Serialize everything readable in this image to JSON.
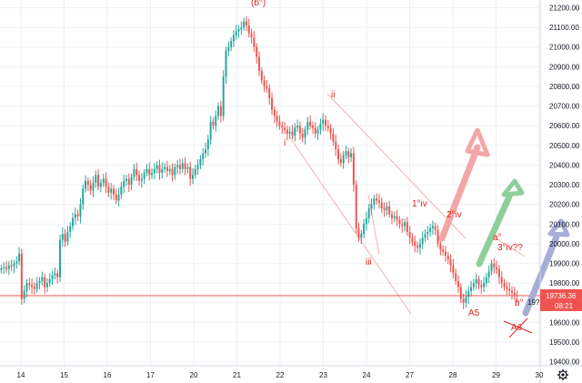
{
  "chart_data": {
    "type": "candlestick",
    "y_axis": {
      "position": "right",
      "ticks": [
        21200,
        21100,
        21000,
        20900,
        20800,
        20700,
        20600,
        20500,
        20400,
        20300,
        20200,
        20100,
        20000,
        19900,
        19800,
        19700,
        19600,
        19500,
        19400
      ],
      "tick_labels": [
        "21200.00",
        "21100.00",
        "21000.00",
        "20900.00",
        "20800.00",
        "20700.00",
        "20600.00",
        "20500.00",
        "20400.00",
        "20300.00",
        "20200.00",
        "20100.00",
        "20000.00",
        "19900.00",
        "19800.00",
        "19700.00",
        "19600.00",
        "19500.00",
        "19400.00"
      ],
      "range": [
        19380,
        21230
      ]
    },
    "x_axis": {
      "labels": [
        "14",
        "15",
        "16",
        "17",
        "20",
        "21",
        "22",
        "23",
        "24",
        "27",
        "28",
        "29",
        "30"
      ]
    },
    "last_price": 19736.36,
    "last_price_label": "19736.36",
    "countdown_label": "08:21",
    "price_line_label": "19?",
    "wave_labels": [
      "(b°)",
      "i",
      "ii",
      "iii",
      "1°iv",
      "2°iv",
      "a°",
      "3°iv??",
      "A5",
      "b°",
      "A6"
    ],
    "prices": [
      19875,
      19880,
      19872,
      19890,
      19885,
      19900,
      19910,
      19950,
      19720,
      19760,
      19800,
      19790,
      19780,
      19770,
      19800,
      19810,
      19830,
      19780,
      19800,
      19820,
      19840,
      19850,
      19830,
      20020,
      20050,
      20010,
      20060,
      20090,
      20130,
      20150,
      20140,
      20200,
      20280,
      20320,
      20300,
      20270,
      20310,
      20350,
      20290,
      20310,
      20330,
      20290,
      20260,
      20280,
      20250,
      20220,
      20250,
      20290,
      20320,
      20330,
      20300,
      20340,
      20380,
      20350,
      20320,
      20330,
      20360,
      20380,
      20350,
      20360,
      20380,
      20400,
      20360,
      20380,
      20390,
      20370,
      20380,
      20350,
      20390,
      20400,
      20380,
      20410,
      20380,
      20390,
      20330,
      20350,
      20380,
      20400,
      20430,
      20460,
      20480,
      20530,
      20620,
      20600,
      20650,
      20700,
      20650,
      20850,
      20980,
      21000,
      21030,
      21060,
      21080,
      21090,
      21100,
      21130,
      21110,
      21070,
      21050,
      21000,
      20950,
      20880,
      20830,
      20800,
      20790,
      20740,
      20680,
      20650,
      20620,
      20600,
      20590,
      20580,
      20560,
      20570,
      20550,
      20590,
      20600,
      20560,
      20540,
      20580,
      20620,
      20600,
      20590,
      20560,
      20580,
      20610,
      20630,
      20600,
      20590,
      20560,
      20520,
      20480,
      20430,
      20410,
      20450,
      20470,
      20440,
      20460,
      20300,
      20080,
      20030,
      20050,
      20100,
      20130,
      20180,
      20200,
      20230,
      20220,
      20210,
      20180,
      20170,
      20190,
      20150,
      20130,
      20140,
      20120,
      20100,
      20090,
      20110,
      20060,
      20030,
      20010,
      19990,
      19980,
      20000,
      20030,
      20050,
      20060,
      20080,
      20090,
      20070,
      20000,
      19970,
      19960,
      19940,
      19920,
      19890,
      19850,
      19810,
      19780,
      19720,
      19700,
      19730,
      19760,
      19780,
      19800,
      19820,
      19790,
      19780,
      19800,
      19830,
      19860,
      19900,
      19880,
      19870,
      19830,
      19800,
      19780,
      19770,
      19760,
      19750,
      19740,
      19736
    ]
  },
  "colors": {
    "up": "#26a69a",
    "down": "#ef5350",
    "grid": "#eef0f4",
    "price_line": "#ef5350",
    "annotation": "#e0251b",
    "arrow_red": "#f4a6a6",
    "arrow_green": "#8ecf9a",
    "arrow_blue": "#a8add6"
  },
  "settings_icon": "gear-icon"
}
